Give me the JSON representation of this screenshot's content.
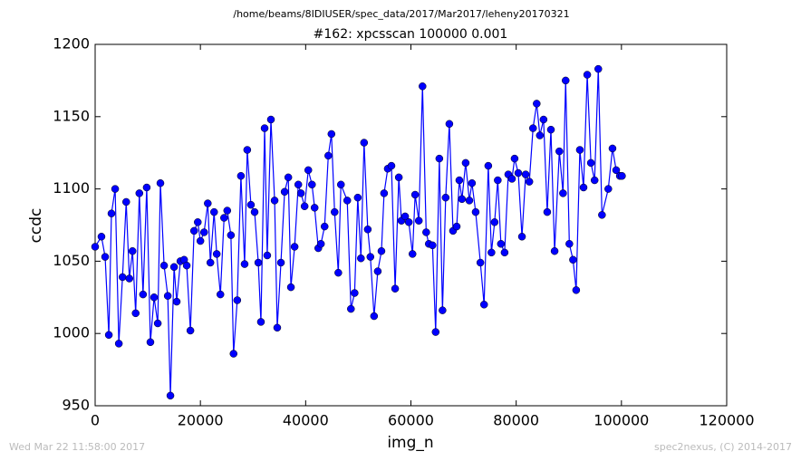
{
  "chart_data": {
    "type": "line",
    "header": "/home/beams/8IDIUSER/spec_data/2017/Mar2017/leheny20170321",
    "title": "#162: xpcsscan 100000 0.001",
    "x_label": "img_n",
    "y_label": "ccdc",
    "footer_left": "Wed Mar 22 11:58:00 2017",
    "footer_right": "spec2nexus, (C) 2014-2017",
    "xlim": [
      0,
      120000
    ],
    "ylim": [
      950,
      1200
    ],
    "xticks": [
      0,
      20000,
      40000,
      60000,
      80000,
      100000,
      120000
    ],
    "yticks": [
      950,
      1000,
      1050,
      1100,
      1150,
      1200
    ],
    "grid": false,
    "series": [
      {
        "color": "#0000ff",
        "x": [
          0,
          1200,
          1900,
          2600,
          3100,
          3800,
          4500,
          5200,
          5900,
          6500,
          7100,
          7700,
          8400,
          9100,
          9800,
          10500,
          11200,
          11900,
          12400,
          13100,
          13800,
          14300,
          15000,
          15500,
          16200,
          16900,
          17400,
          18100,
          18800,
          19500,
          20000,
          20700,
          21400,
          21900,
          22600,
          23100,
          23800,
          24500,
          25100,
          25800,
          26300,
          27000,
          27700,
          28400,
          28900,
          29600,
          30300,
          31000,
          31500,
          32200,
          32700,
          33400,
          34100,
          34600,
          35300,
          36000,
          36700,
          37200,
          37900,
          38600,
          39100,
          39800,
          40500,
          41200,
          41700,
          42400,
          42900,
          43600,
          44300,
          44900,
          45500,
          46200,
          46700,
          47900,
          48600,
          49300,
          49900,
          50500,
          51100,
          51800,
          52300,
          53000,
          53700,
          54400,
          54900,
          55600,
          56300,
          57000,
          57700,
          58200,
          58900,
          59600,
          60300,
          60800,
          61500,
          62200,
          62900,
          63400,
          64100,
          64700,
          65400,
          66000,
          66600,
          67300,
          68000,
          68700,
          69200,
          69700,
          70400,
          71100,
          71600,
          72300,
          73200,
          73900,
          74700,
          75300,
          75900,
          76500,
          77100,
          77800,
          78500,
          79200,
          79700,
          80400,
          81100,
          81800,
          82500,
          83200,
          83900,
          84500,
          85200,
          85900,
          86600,
          87300,
          88200,
          88900,
          89400,
          90100,
          90800,
          91400,
          92100,
          92800,
          93500,
          94200,
          94900,
          95600,
          96300,
          97500,
          98300,
          99000,
          99700,
          100100
        ],
        "values": [
          1060,
          1067,
          1053,
          999,
          1083,
          1100,
          993,
          1039,
          1091,
          1038,
          1057,
          1014,
          1097,
          1027,
          1101,
          994,
          1025,
          1007,
          1104,
          1047,
          1026,
          957,
          1046,
          1022,
          1050,
          1051,
          1047,
          1002,
          1071,
          1077,
          1064,
          1070,
          1090,
          1049,
          1084,
          1055,
          1027,
          1080,
          1085,
          1068,
          986,
          1023,
          1109,
          1048,
          1127,
          1089,
          1084,
          1049,
          1008,
          1142,
          1054,
          1148,
          1092,
          1004,
          1049,
          1098,
          1108,
          1032,
          1060,
          1103,
          1097,
          1088,
          1113,
          1103,
          1087,
          1059,
          1062,
          1074,
          1123,
          1138,
          1084,
          1042,
          1103,
          1092,
          1017,
          1028,
          1094,
          1052,
          1132,
          1072,
          1053,
          1012,
          1043,
          1057,
          1097,
          1114,
          1116,
          1031,
          1108,
          1078,
          1081,
          1077,
          1055,
          1096,
          1078,
          1171,
          1070,
          1062,
          1061,
          1001,
          1121,
          1016,
          1094,
          1145,
          1071,
          1074,
          1106,
          1093,
          1118,
          1092,
          1104,
          1084,
          1049,
          1020,
          1116,
          1056,
          1077,
          1106,
          1062,
          1056,
          1110,
          1107,
          1121,
          1111,
          1067,
          1110,
          1105,
          1142,
          1159,
          1137,
          1148,
          1084,
          1141,
          1057,
          1126,
          1097,
          1175,
          1062,
          1051,
          1030,
          1127,
          1101,
          1179,
          1118,
          1106,
          1183,
          1082,
          1100,
          1128,
          1113,
          1109,
          1109
        ]
      }
    ]
  }
}
